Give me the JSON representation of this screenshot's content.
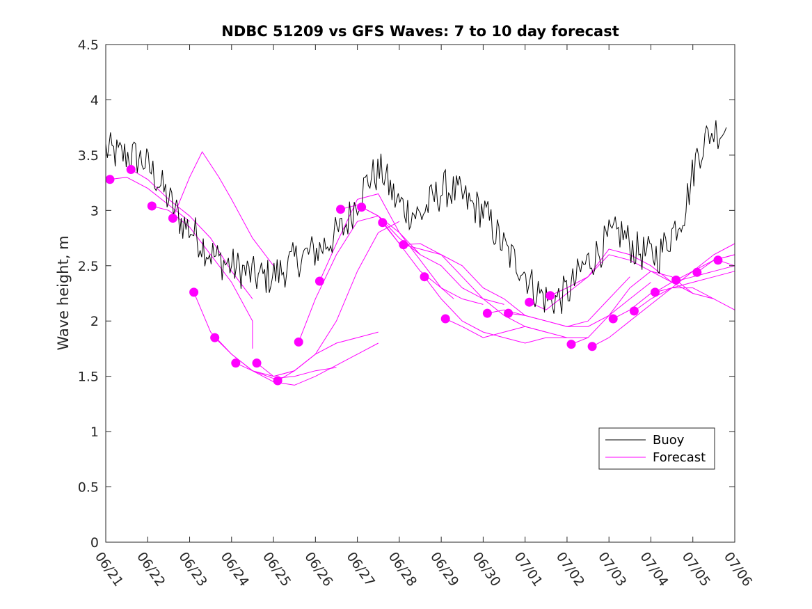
{
  "chart_data": {
    "type": "line",
    "title": "NDBC 51209 vs GFS Waves: 7 to 10 day forecast",
    "xlabel": "",
    "ylabel": "Wave height, m",
    "ylim": [
      0,
      4.5
    ],
    "yticks": [
      "0",
      "0.5",
      "1",
      "1.5",
      "2",
      "2.5",
      "3",
      "3.5",
      "4",
      "4.5"
    ],
    "xlim_days": [
      0,
      15
    ],
    "xticks": [
      "06/21",
      "06/22",
      "06/23",
      "06/24",
      "06/25",
      "06/26",
      "06/27",
      "06/28",
      "06/29",
      "06/30",
      "07/01",
      "07/02",
      "07/03",
      "07/04",
      "07/05",
      "07/06"
    ],
    "grid": false,
    "legend_position": "bottom-right",
    "colors": {
      "buoy": "#000000",
      "forecast": "#ff00ff"
    },
    "buoy": {
      "name": "Buoy",
      "x": [
        0,
        0.3,
        0.6,
        0.9,
        1.2,
        1.5,
        1.8,
        2.1,
        2.4,
        2.7,
        3.0,
        3.3,
        3.6,
        3.9,
        4.2,
        4.5,
        4.8,
        5.1,
        5.4,
        5.7,
        6.0,
        6.3,
        6.6,
        6.9,
        7.2,
        7.5,
        7.8,
        8.1,
        8.4,
        8.7,
        9.0,
        9.3,
        9.6,
        9.9,
        10.2,
        10.5,
        10.8,
        11.1,
        11.4,
        11.7,
        12.0,
        12.3,
        12.6,
        12.9,
        13.2,
        13.5,
        13.8,
        14.1,
        14.4,
        14.8
      ],
      "y": [
        3.55,
        3.5,
        3.5,
        3.45,
        3.3,
        3.1,
        2.9,
        2.8,
        2.65,
        2.55,
        2.5,
        2.45,
        2.4,
        2.4,
        2.45,
        2.55,
        2.6,
        2.65,
        2.75,
        2.85,
        3.1,
        3.3,
        3.35,
        3.1,
        3.0,
        2.95,
        3.1,
        3.2,
        3.15,
        3.05,
        3.0,
        2.8,
        2.6,
        2.5,
        2.3,
        2.2,
        2.2,
        2.3,
        2.5,
        2.6,
        2.75,
        2.8,
        2.65,
        2.6,
        2.6,
        2.8,
        3.0,
        3.5,
        3.7,
        3.75
      ]
    },
    "forecast_runs": [
      {
        "x": [
          0.1,
          0.5,
          1.0,
          1.5,
          2.0
        ],
        "y": [
          3.28,
          3.3,
          3.2,
          3.05,
          2.9
        ]
      },
      {
        "x": [
          0.6,
          1.0,
          1.5,
          2.0,
          2.5,
          3.0,
          3.5
        ],
        "y": [
          3.37,
          3.28,
          3.1,
          2.95,
          2.75,
          2.45,
          2.2
        ]
      },
      {
        "x": [
          1.1,
          1.5,
          2.0,
          2.5,
          3.0,
          3.5,
          3.5
        ],
        "y": [
          3.04,
          3.0,
          2.85,
          2.6,
          2.35,
          2.0,
          1.75
        ]
      },
      {
        "x": [
          1.6,
          2.0,
          2.3,
          2.7,
          3.0,
          3.5,
          4.0
        ],
        "y": [
          2.93,
          3.3,
          3.53,
          3.3,
          3.1,
          2.75,
          2.5
        ]
      },
      {
        "x": [
          2.1,
          2.5,
          3.0,
          3.5,
          4.0,
          4.5
        ],
        "y": [
          2.26,
          1.9,
          1.7,
          1.55,
          1.5,
          1.55
        ]
      },
      {
        "x": [
          2.6,
          3.0,
          3.5,
          4.0,
          4.5,
          5.0,
          5.5
        ],
        "y": [
          1.85,
          1.7,
          1.55,
          1.48,
          1.5,
          1.55,
          1.58
        ]
      },
      {
        "x": [
          3.1,
          3.5,
          4.0,
          4.5,
          5.0,
          5.5,
          6.0,
          6.5
        ],
        "y": [
          1.62,
          1.55,
          1.45,
          1.42,
          1.5,
          1.6,
          1.7,
          1.8
        ]
      },
      {
        "x": [
          3.6,
          4.0,
          4.5,
          5.0,
          5.5,
          6.0,
          6.5
        ],
        "y": [
          1.62,
          1.5,
          1.55,
          1.7,
          1.8,
          1.85,
          1.9
        ]
      },
      {
        "x": [
          4.1,
          4.5,
          5.0,
          5.5,
          6.0,
          6.5,
          7.0
        ],
        "y": [
          1.46,
          1.55,
          1.7,
          2.0,
          2.45,
          2.8,
          2.9
        ]
      },
      {
        "x": [
          4.6,
          5.0,
          5.5,
          6.0,
          6.5,
          7.0,
          7.5
        ],
        "y": [
          1.81,
          2.2,
          2.6,
          2.9,
          2.95,
          2.8,
          2.6
        ]
      },
      {
        "x": [
          5.1,
          5.5,
          6.0,
          6.5,
          7.0,
          7.5,
          8.0,
          8.3
        ],
        "y": [
          2.36,
          2.7,
          3.1,
          3.15,
          2.8,
          2.55,
          2.3,
          2.2
        ]
      },
      {
        "x": [
          5.6,
          6.0,
          6.5,
          7.0,
          7.5,
          8.0,
          8.5,
          9.0
        ],
        "y": [
          3.01,
          3.05,
          2.95,
          2.7,
          2.45,
          2.3,
          2.2,
          2.15
        ]
      },
      {
        "x": [
          6.1,
          6.5,
          7.0,
          7.5,
          8.0,
          8.5,
          9.0,
          9.5
        ],
        "y": [
          3.03,
          2.95,
          2.75,
          2.6,
          2.5,
          2.3,
          2.2,
          2.15
        ]
      },
      {
        "x": [
          6.6,
          7.0,
          7.5,
          8.0,
          8.5,
          9.0,
          9.5,
          10.0
        ],
        "y": [
          2.89,
          2.7,
          2.65,
          2.6,
          2.5,
          2.3,
          2.2,
          2.05
        ]
      },
      {
        "x": [
          7.1,
          7.5,
          8.0,
          8.5,
          9.0,
          9.5,
          10.0,
          10.5
        ],
        "y": [
          2.69,
          2.7,
          2.6,
          2.4,
          2.2,
          2.05,
          1.95,
          1.9
        ]
      },
      {
        "x": [
          7.6,
          8.0,
          8.5,
          9.0,
          9.5,
          10.0,
          10.5,
          11.0
        ],
        "y": [
          2.4,
          2.2,
          2.0,
          1.9,
          1.85,
          1.8,
          1.85,
          1.85
        ]
      },
      {
        "x": [
          8.1,
          8.5,
          9.0,
          9.5,
          10.0,
          10.5,
          11.0,
          11.5
        ],
        "y": [
          2.02,
          1.95,
          1.85,
          1.9,
          1.95,
          1.9,
          1.85,
          1.85
        ]
      },
      {
        "x": [
          9.1,
          9.5,
          10.0,
          10.5,
          11.0,
          11.5,
          12.0,
          12.5
        ],
        "y": [
          2.07,
          2.1,
          2.05,
          2.0,
          1.95,
          2.0,
          2.2,
          2.4
        ]
      },
      {
        "x": [
          9.6,
          10.0,
          10.5,
          11.0,
          11.5,
          12.0,
          12.5,
          13.0
        ],
        "y": [
          2.07,
          2.05,
          2.0,
          1.95,
          1.95,
          2.05,
          2.2,
          2.35
        ]
      },
      {
        "x": [
          10.1,
          10.5,
          11.0,
          11.5,
          12.0,
          12.5,
          13.0,
          13.5
        ],
        "y": [
          2.17,
          2.1,
          2.25,
          2.4,
          2.65,
          2.6,
          2.5,
          2.35
        ]
      },
      {
        "x": [
          10.6,
          11.0,
          11.5,
          12.0,
          12.5,
          13.0,
          13.5,
          14.0
        ],
        "y": [
          2.23,
          2.3,
          2.4,
          2.6,
          2.55,
          2.45,
          2.35,
          2.25
        ]
      },
      {
        "x": [
          11.1,
          11.5,
          12.0,
          12.5,
          13.0,
          13.5,
          14.0,
          14.5
        ],
        "y": [
          1.79,
          1.85,
          2.05,
          2.3,
          2.45,
          2.4,
          2.25,
          2.2
        ]
      },
      {
        "x": [
          11.6,
          12.0,
          12.5,
          13.0,
          13.5,
          14.0,
          14.5,
          15.0
        ],
        "y": [
          1.77,
          1.85,
          2.0,
          2.15,
          2.3,
          2.45,
          2.6,
          2.7
        ]
      },
      {
        "x": [
          12.1,
          12.5,
          13.0,
          13.5,
          14.0,
          14.5,
          15.0
        ],
        "y": [
          2.02,
          2.1,
          2.25,
          2.3,
          2.3,
          2.2,
          2.1
        ]
      },
      {
        "x": [
          12.6,
          13.0,
          13.5,
          14.0,
          14.5,
          15.0
        ],
        "y": [
          2.09,
          2.2,
          2.3,
          2.35,
          2.4,
          2.45
        ]
      },
      {
        "x": [
          13.1,
          13.5,
          14.0,
          14.5,
          15.0
        ],
        "y": [
          2.26,
          2.35,
          2.4,
          2.45,
          2.5
        ]
      },
      {
        "x": [
          13.6,
          14.0,
          14.5,
          15.0
        ],
        "y": [
          2.37,
          2.45,
          2.55,
          2.6
        ]
      },
      {
        "x": [
          14.1,
          14.5,
          15.0
        ],
        "y": [
          2.44,
          2.55,
          2.6
        ]
      },
      {
        "x": [
          14.6,
          15.0
        ],
        "y": [
          2.55,
          2.5
        ]
      }
    ],
    "legend": [
      "Buoy",
      "Forecast"
    ]
  }
}
